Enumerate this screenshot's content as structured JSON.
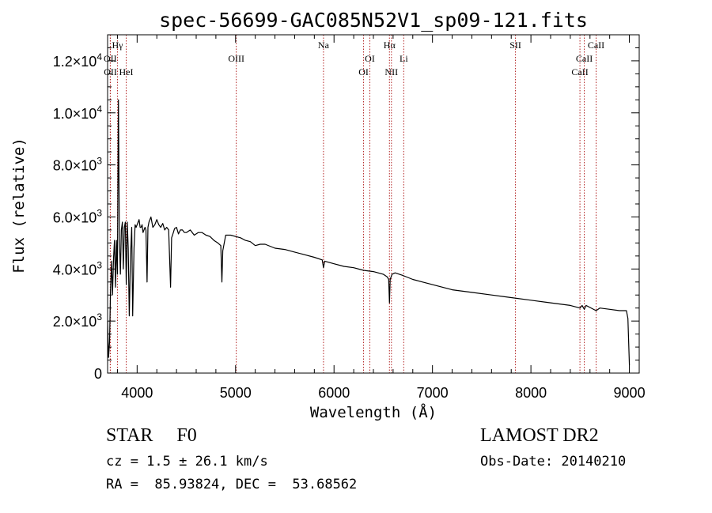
{
  "chart_data": {
    "type": "line",
    "title": "spec-56699-GAC085N52V1_sp09-121.fits",
    "xlabel": "Wavelength (Å)",
    "ylabel": "Flux (relative)",
    "xlim": [
      3700,
      9100
    ],
    "ylim": [
      0,
      13000
    ],
    "x_ticks": [
      {
        "value": 4000,
        "label": "4000"
      },
      {
        "value": 5000,
        "label": "5000"
      },
      {
        "value": 6000,
        "label": "6000"
      },
      {
        "value": 7000,
        "label": "7000"
      },
      {
        "value": 8000,
        "label": "8000"
      },
      {
        "value": 9000,
        "label": "9000"
      }
    ],
    "y_ticks": [
      {
        "value": 0,
        "mantissa": "0",
        "exp": ""
      },
      {
        "value": 2000,
        "mantissa": "2.0×10",
        "exp": "3"
      },
      {
        "value": 4000,
        "mantissa": "4.0×10",
        "exp": "3"
      },
      {
        "value": 6000,
        "mantissa": "6.0×10",
        "exp": "3"
      },
      {
        "value": 8000,
        "mantissa": "8.0×10",
        "exp": "3"
      },
      {
        "value": 10000,
        "mantissa": "1.0×10",
        "exp": "4"
      },
      {
        "value": 12000,
        "mantissa": "1.2×10",
        "exp": "4"
      }
    ],
    "lines": [
      {
        "label": "OII",
        "x": 3727,
        "row": 1
      },
      {
        "label": "Hγ",
        "x": 3800,
        "row": 0
      },
      {
        "label": "OII",
        "x": 3729,
        "row": 2
      },
      {
        "label": "HeI",
        "x": 3889,
        "row": 2
      },
      {
        "label": "OIII",
        "x": 5007,
        "row": 1
      },
      {
        "label": "Na",
        "x": 5893,
        "row": 0
      },
      {
        "label": "OI",
        "x": 6300,
        "row": 2
      },
      {
        "label": "OI",
        "x": 6364,
        "row": 1
      },
      {
        "label": "Hα",
        "x": 6563,
        "row": 0
      },
      {
        "label": "NII",
        "x": 6583,
        "row": 2
      },
      {
        "label": "Li",
        "x": 6708,
        "row": 1
      },
      {
        "label": "SII",
        "x": 7843,
        "row": 0
      },
      {
        "label": "CaII",
        "x": 8498,
        "row": 2
      },
      {
        "label": "CaII",
        "x": 8542,
        "row": 1
      },
      {
        "label": "CaII",
        "x": 8662,
        "row": 0
      }
    ],
    "spectrum": {
      "x": [
        3700,
        3710,
        3720,
        3730,
        3740,
        3750,
        3760,
        3770,
        3780,
        3790,
        3800,
        3810,
        3820,
        3830,
        3840,
        3850,
        3860,
        3870,
        3880,
        3890,
        3900,
        3910,
        3920,
        3933,
        3945,
        3955,
        3968,
        3980,
        3990,
        4000,
        4010,
        4020,
        4030,
        4040,
        4050,
        4060,
        4070,
        4080,
        4090,
        4101,
        4110,
        4120,
        4140,
        4160,
        4180,
        4200,
        4220,
        4240,
        4260,
        4280,
        4300,
        4320,
        4340,
        4350,
        4360,
        4380,
        4400,
        4420,
        4440,
        4460,
        4480,
        4500,
        4540,
        4580,
        4620,
        4660,
        4700,
        4740,
        4780,
        4820,
        4850,
        4861,
        4870,
        4900,
        4950,
        5000,
        5050,
        5100,
        5150,
        5200,
        5250,
        5300,
        5400,
        5500,
        5600,
        5700,
        5800,
        5880,
        5893,
        5905,
        6000,
        6100,
        6200,
        6300,
        6400,
        6500,
        6540,
        6555,
        6563,
        6570,
        6590,
        6620,
        6700,
        6800,
        6900,
        7000,
        7200,
        7400,
        7600,
        7800,
        8000,
        8200,
        8400,
        8498,
        8520,
        8542,
        8560,
        8662,
        8700,
        8800,
        8900,
        8970,
        8985,
        9000
      ],
      "y": [
        2000,
        600,
        1200,
        3200,
        4300,
        3000,
        4400,
        5100,
        3300,
        5100,
        3800,
        10500,
        5200,
        3800,
        5500,
        5800,
        4000,
        5600,
        5800,
        3400,
        5800,
        4800,
        2200,
        4500,
        5600,
        2200,
        4800,
        5700,
        5600,
        5700,
        5800,
        5900,
        5600,
        5600,
        5700,
        5400,
        5500,
        5600,
        5500,
        3500,
        5600,
        5800,
        6000,
        5600,
        5700,
        5900,
        5700,
        5600,
        5750,
        5500,
        5600,
        5500,
        3300,
        5200,
        5300,
        5550,
        5600,
        5350,
        5500,
        5500,
        5400,
        5400,
        5500,
        5300,
        5400,
        5400,
        5300,
        5250,
        5100,
        5000,
        4900,
        3500,
        4700,
        5300,
        5300,
        5250,
        5200,
        5100,
        5050,
        4900,
        4950,
        4950,
        4800,
        4750,
        4650,
        4550,
        4450,
        4350,
        4050,
        4300,
        4200,
        4100,
        4050,
        3950,
        3900,
        3800,
        3700,
        3600,
        2700,
        3600,
        3800,
        3850,
        3750,
        3600,
        3500,
        3400,
        3200,
        3100,
        3000,
        2900,
        2800,
        2700,
        2600,
        2500,
        2600,
        2450,
        2600,
        2400,
        2500,
        2450,
        2400,
        2400,
        2100,
        300
      ]
    }
  },
  "info": {
    "class_text": "STAR     F0",
    "cz_text": "cz = 1.5 ± 26.1 km/s",
    "radec_text": "RA =  85.93824, DEC =  53.68562",
    "survey_text": "LAMOST DR2",
    "obsdate_text": "Obs-Date: 20140210"
  }
}
